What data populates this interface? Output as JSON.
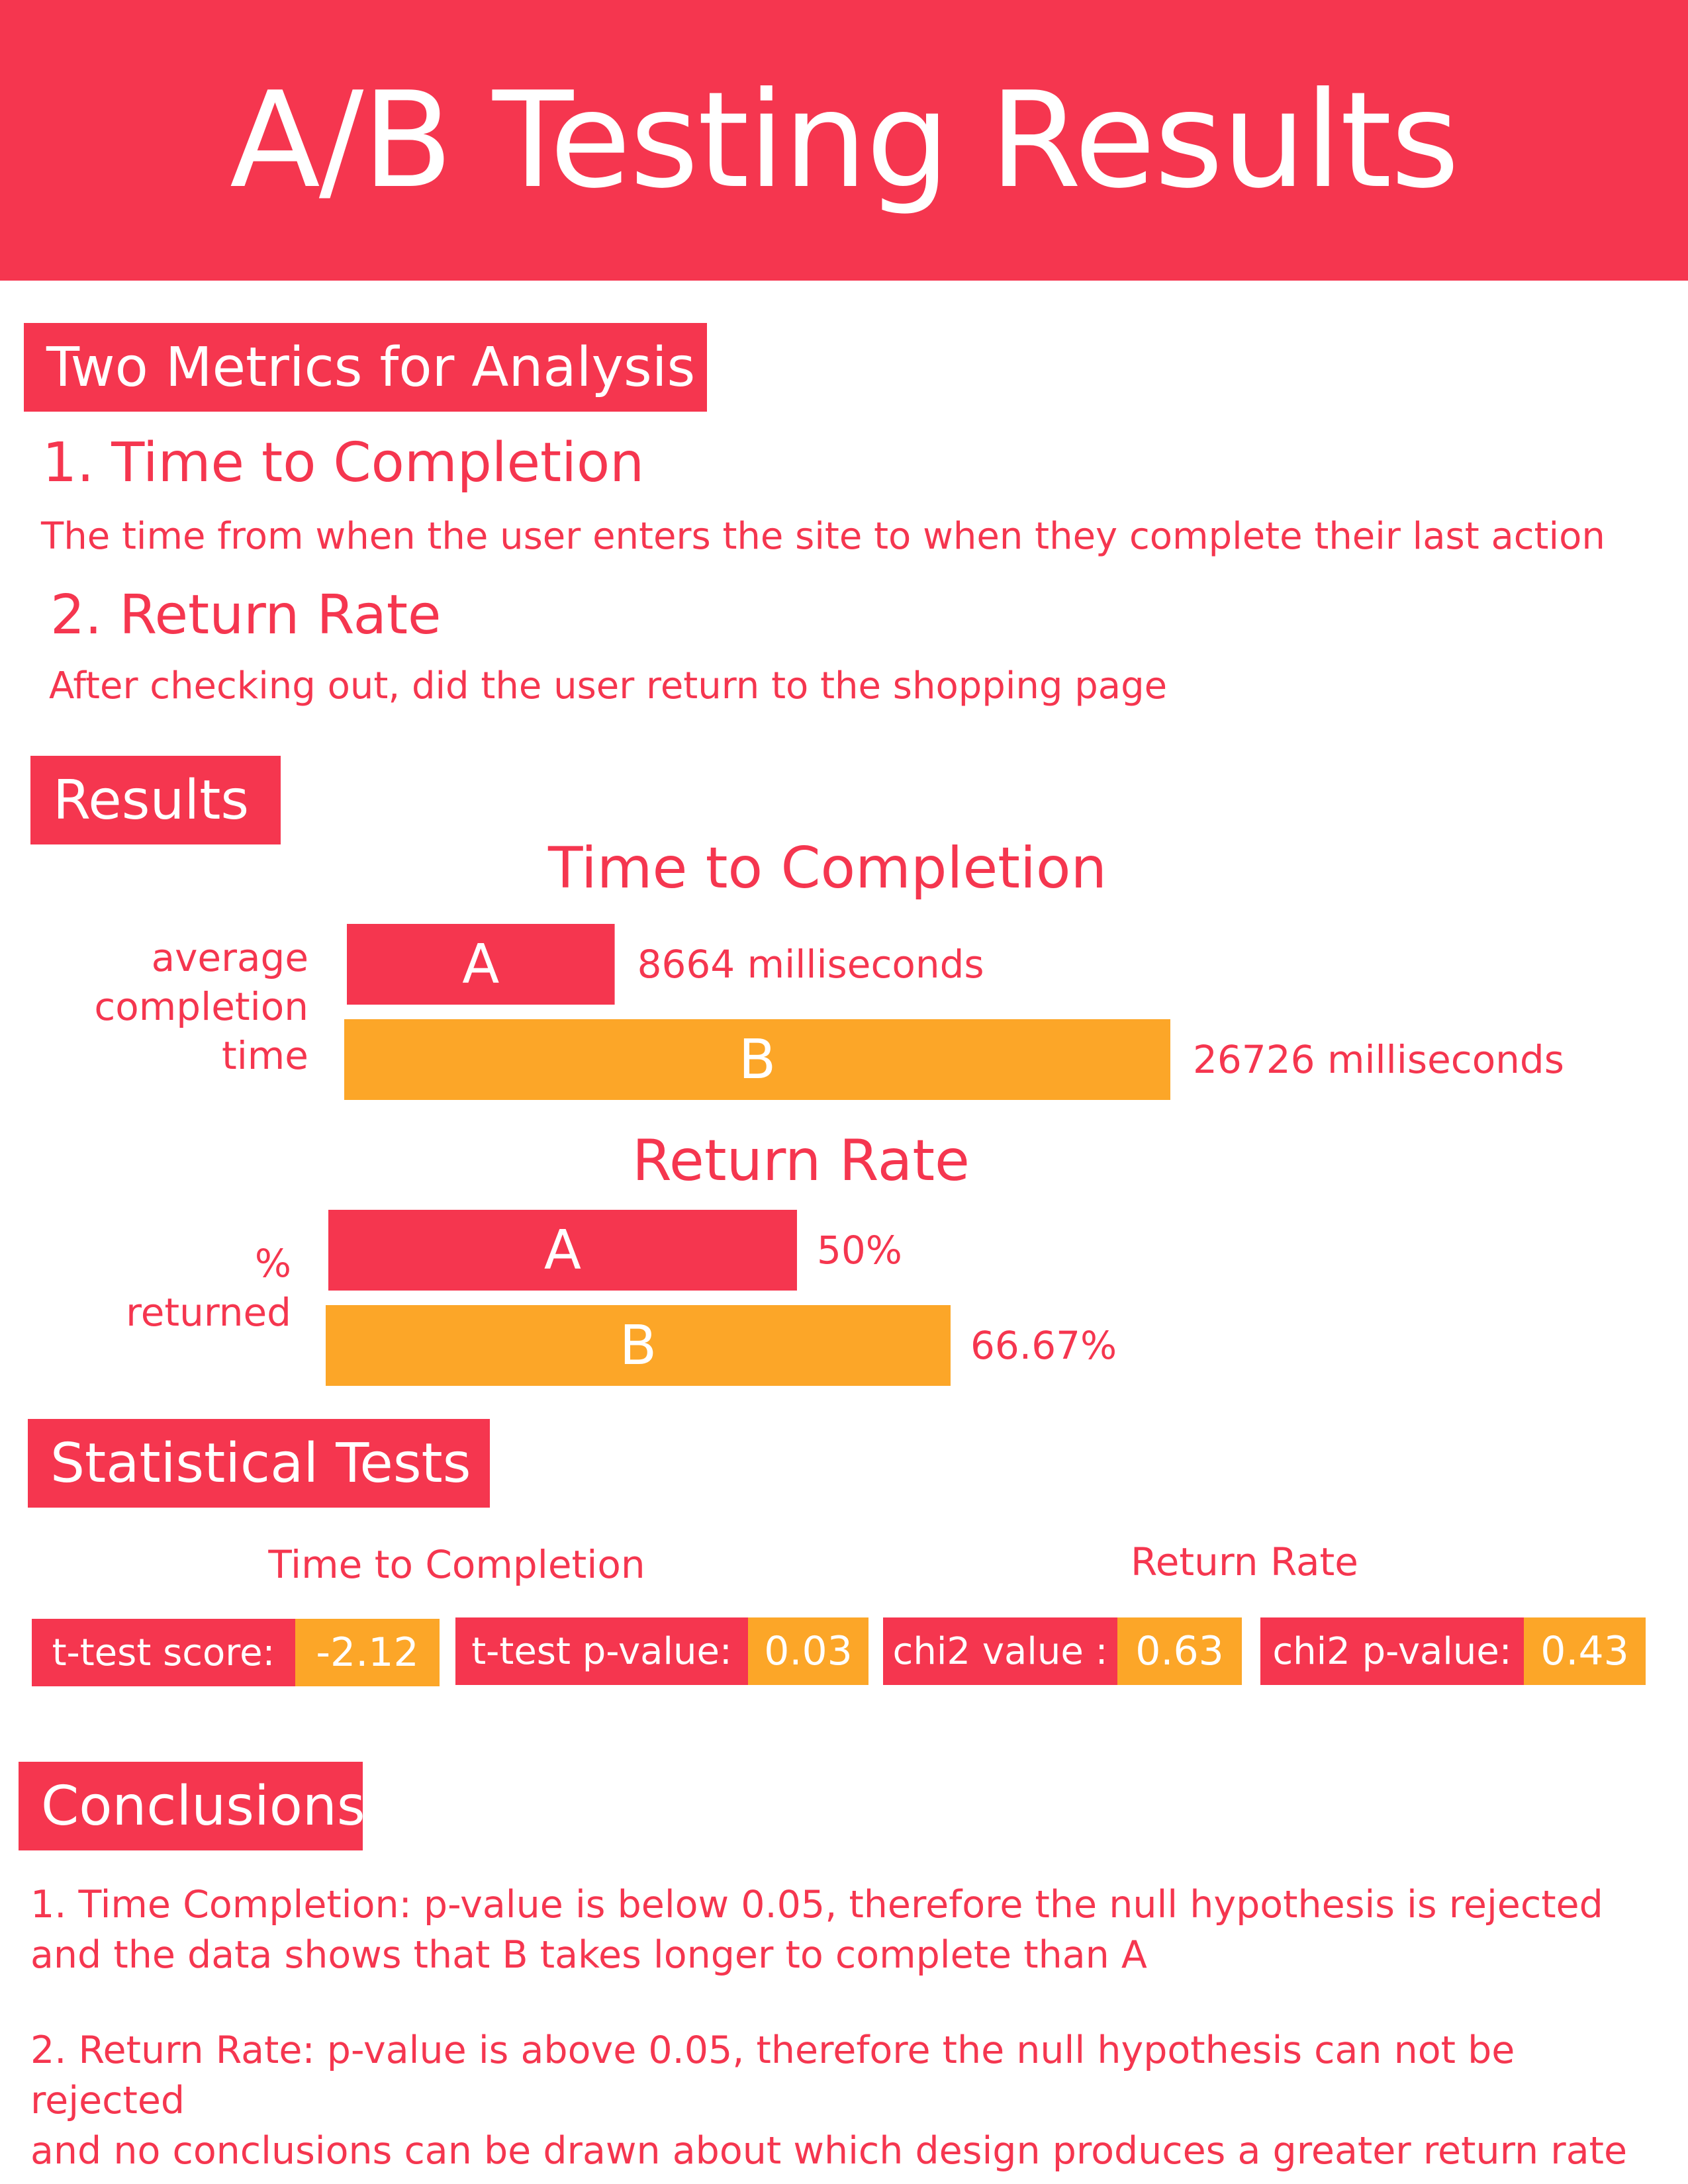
{
  "title": "A/B Testing Results",
  "colors": {
    "accent": "#f5364f",
    "variant_b": "#fca628",
    "background": "#ffffff"
  },
  "metrics_section": {
    "heading": "Two Metrics for Analysis",
    "items": [
      {
        "title": "1. Time to Completion",
        "description": "The time from when the user enters the site to when they complete their last action"
      },
      {
        "title": "2. Return Rate",
        "description": "After checking out, did the user return to the shopping page"
      }
    ]
  },
  "results_section": {
    "heading": "Results"
  },
  "chart_data": [
    {
      "type": "bar",
      "orientation": "horizontal",
      "title": "Time to Completion",
      "ylabel_lines": [
        "average",
        "completion",
        "time"
      ],
      "categories": [
        "A",
        "B"
      ],
      "values": [
        8664,
        26726
      ],
      "unit": "milliseconds",
      "value_labels": [
        "8664 milliseconds",
        "26726 milliseconds"
      ],
      "colors": [
        "#f5364f",
        "#fca628"
      ]
    },
    {
      "type": "bar",
      "orientation": "horizontal",
      "title": "Return Rate",
      "ylabel_lines": [
        "%",
        "returned"
      ],
      "categories": [
        "A",
        "B"
      ],
      "values": [
        50,
        66.67
      ],
      "unit": "%",
      "value_labels": [
        "50%",
        "66.67%"
      ],
      "colors": [
        "#f5364f",
        "#fca628"
      ]
    }
  ],
  "stats_section": {
    "heading": "Statistical Tests",
    "groups": [
      "Time to Completion",
      "Return Rate"
    ],
    "tests": [
      {
        "label": "t-test score:",
        "value": "-2.12"
      },
      {
        "label": "t-test p-value:",
        "value": "0.03"
      },
      {
        "label": "chi2 value :",
        "value": "0.63"
      },
      {
        "label": "chi2 p-value:",
        "value": "0.43"
      }
    ]
  },
  "conclusions_section": {
    "heading": "Conclusions",
    "items": [
      {
        "line1": "1. Time Completion: p-value is below 0.05, therefore the null hypothesis is rejected",
        "line2": "and the data shows that B takes longer to complete than A"
      },
      {
        "line1": "2. Return Rate: p-value is above 0.05, therefore the null hypothesis can not be rejected",
        "line2": "and no conclusions can be drawn about which design produces a greater return rate"
      }
    ]
  }
}
